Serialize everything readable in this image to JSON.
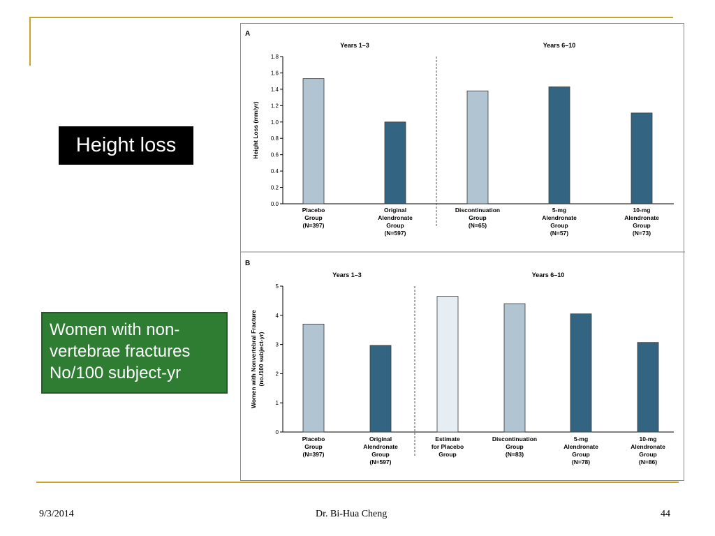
{
  "slide": {
    "label_height": "Height loss",
    "label_fracture_lines": [
      "Women with non-",
      "vertebrae fractures",
      "No/100 subject-yr"
    ],
    "footer_date": "9/3/2014",
    "footer_author": "Dr. Bi-Hua Cheng",
    "footer_page": "44",
    "accent_color": "#c9a227"
  },
  "chart_data": [
    {
      "type": "bar",
      "panel": "A",
      "ylabel": "Height Loss (mm/yr)",
      "ylim": [
        0,
        1.8
      ],
      "yticks": [
        "0.0",
        "0.2",
        "0.4",
        "0.6",
        "0.8",
        "1.0",
        "1.2",
        "1.4",
        "1.6",
        "1.8"
      ],
      "period_labels": [
        "Years 1–3",
        "Years 6–10"
      ],
      "categories": [
        [
          "Placebo",
          "Group",
          "(N=397)"
        ],
        [
          "Original",
          "Alendronate",
          "Group",
          "(N=597)"
        ],
        [
          "Discontinuation",
          "Group",
          "(N=65)"
        ],
        [
          "5-mg",
          "Alendronate",
          "Group",
          "(N=57)"
        ],
        [
          "10-mg",
          "Alendronate",
          "Group",
          "(N=73)"
        ]
      ],
      "values": [
        1.53,
        1.0,
        1.38,
        1.43,
        1.11
      ],
      "colors": [
        "#b0c4d2",
        "#336582",
        "#b0c4d2",
        "#336582",
        "#336582"
      ],
      "divider_after": 2
    },
    {
      "type": "bar",
      "panel": "B",
      "ylabel": "Women with Nonvertebral Fracture (no./100 subject-yr)",
      "ylim": [
        0,
        5
      ],
      "yticks": [
        "0",
        "1",
        "2",
        "3",
        "4",
        "5"
      ],
      "period_labels": [
        "Years 1–3",
        "Years 6–10"
      ],
      "categories": [
        [
          "Placebo",
          "Group",
          "(N=397)"
        ],
        [
          "Original",
          "Alendronate",
          "Group",
          "(N=597)"
        ],
        [
          "Estimate",
          "for Placebo",
          "Group"
        ],
        [
          "Discontinuation",
          "Group",
          "(N=83)"
        ],
        [
          "5-mg",
          "Alendronate",
          "Group",
          "(N=78)"
        ],
        [
          "10-mg",
          "Alendronate",
          "Group",
          "(N=86)"
        ]
      ],
      "values": [
        3.7,
        2.97,
        4.65,
        4.4,
        4.05,
        3.07
      ],
      "colors": [
        "#b0c4d2",
        "#336582",
        "#e6eef4",
        "#b0c4d2",
        "#336582",
        "#336582"
      ],
      "divider_after": 2
    }
  ]
}
